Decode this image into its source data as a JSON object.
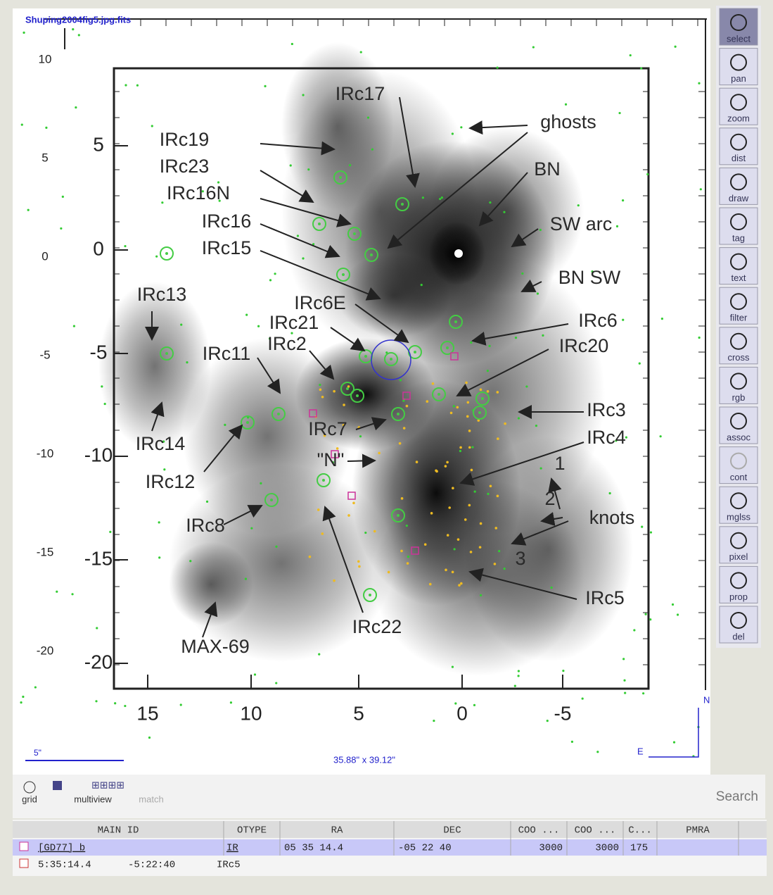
{
  "image": {
    "title": "Shuping2004fig5.jpg.fits",
    "outer_y_ticks": [
      "10",
      "5",
      "0",
      "-5",
      "-10",
      "-15",
      "-20"
    ],
    "inner_y_ticks": [
      "5",
      "0",
      "-5",
      "-10",
      "-15",
      "-20"
    ],
    "inner_x_ticks": [
      "15",
      "10",
      "5",
      "0",
      "-5"
    ],
    "annotations": [
      "IRc17",
      "ghosts",
      "IRc19",
      "IRc23",
      "IRc16N",
      "BN",
      "IRc16",
      "SW arc",
      "IRc15",
      "BN SW",
      "IRc13",
      "IRc6E",
      "IRc21",
      "IRc6",
      "IRc2",
      "IRc20",
      "IRc11",
      "IRc3",
      "IRc4",
      "IRc7",
      "\"N\"",
      "IRc14",
      "IRc12",
      "1",
      "2",
      "knots",
      "3",
      "IRc8",
      "IRc5",
      "IRc22",
      "MAX-69"
    ],
    "scale": "5\"",
    "size": "35.88\" x 39.12\"",
    "compass": [
      "N",
      "E"
    ]
  },
  "toolbar": [
    "select",
    "pan",
    "zoom",
    "dist",
    "draw",
    "tag",
    "text",
    "filter",
    "cross",
    "rgb",
    "assoc",
    "cont",
    "mglss",
    "pixel",
    "prop",
    "del"
  ],
  "bottom_bar": {
    "grid": "grid",
    "multiview": "multiview",
    "match": "match",
    "search": "Search"
  },
  "table": {
    "headers": [
      "MAIN ID",
      "OTYPE",
      "RA",
      "DEC",
      "COO ...",
      "COO ...",
      "C...",
      "PMRA"
    ],
    "rows": [
      [
        "[GD77] b",
        "IR",
        "05 35 14.4",
        "-05 22 40",
        "3000",
        "3000",
        "175"
      ],
      [
        "5:35:14.4",
        "-5:22:40",
        "IRc5"
      ]
    ]
  }
}
